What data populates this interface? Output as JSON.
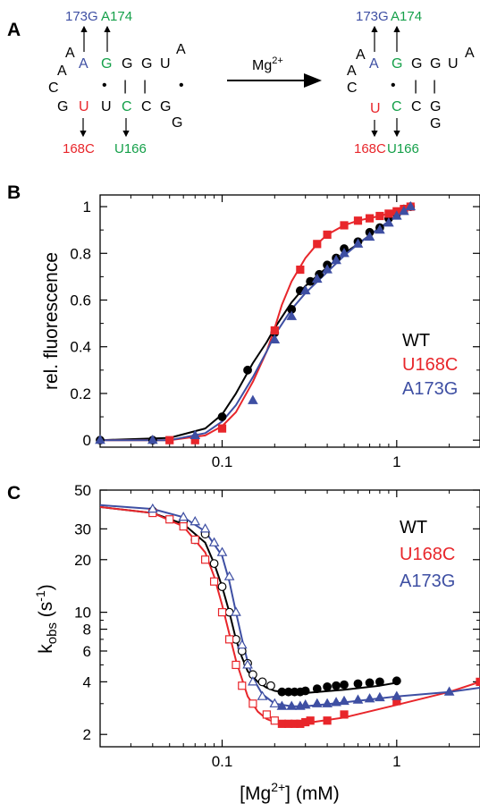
{
  "colors": {
    "wt": "#000000",
    "u168c": "#e8262b",
    "a173g": "#3e4fa3",
    "green": "#15a04a"
  },
  "panel_a": {
    "letter": "A",
    "arrow_label": "Mg",
    "arrow_label_sup": "2+",
    "left": {
      "top_left_label": "173G",
      "top_right_label": "A174",
      "bottom_left_label": "168C",
      "bottom_right_label": "U166",
      "nucleotides": [
        "A",
        "A",
        "C",
        "A",
        "G",
        "G",
        "G",
        "U",
        "A",
        "G",
        "U",
        "U",
        "C",
        "C",
        "G",
        "G"
      ],
      "dots": [
        "•",
        "•"
      ],
      "bars": [
        "|",
        "|"
      ]
    },
    "right": {
      "top_left_label": "173G",
      "top_right_label": "A174",
      "bottom_left_label": "168C",
      "bottom_right_label": "U166",
      "nucleotides": [
        "A",
        "A",
        "C",
        "A",
        "G",
        "G",
        "G",
        "U",
        "A",
        "U",
        "C",
        "C",
        "G",
        "G"
      ],
      "dots": [
        "•"
      ],
      "bars": [
        "|",
        "|"
      ]
    }
  },
  "chart_data": [
    {
      "panel": "B",
      "type": "scatter",
      "ylabel": "rel. fluorescence",
      "xlabel": "",
      "xscale": "log",
      "xlim": [
        0.02,
        3
      ],
      "ylim": [
        -0.03,
        1.05
      ],
      "xticks": [
        "0.1",
        "1"
      ],
      "yticks": [
        "0",
        "0.2",
        "0.4",
        "0.6",
        "0.8",
        "1"
      ],
      "legend_position": "right",
      "series": [
        {
          "name": "WT",
          "color": "#000000",
          "marker": "circle-filled",
          "x": [
            0.02,
            0.04,
            0.1,
            0.14,
            0.2,
            0.25,
            0.28,
            0.32,
            0.36,
            0.4,
            0.45,
            0.5,
            0.6,
            0.7,
            0.8,
            0.9,
            1.0,
            1.1,
            1.2
          ],
          "y": [
            0.0,
            0.0,
            0.1,
            0.3,
            0.46,
            0.56,
            0.64,
            0.68,
            0.71,
            0.75,
            0.78,
            0.82,
            0.85,
            0.89,
            0.91,
            0.95,
            0.97,
            0.99,
            1.0
          ]
        },
        {
          "name": "U168C",
          "color": "#e8262b",
          "marker": "square-filled",
          "x": [
            0.05,
            0.07,
            0.1,
            0.2,
            0.28,
            0.35,
            0.4,
            0.5,
            0.6,
            0.7,
            0.8,
            0.9,
            1.0,
            1.1,
            1.2
          ],
          "y": [
            0.0,
            0.0,
            0.05,
            0.47,
            0.73,
            0.84,
            0.88,
            0.92,
            0.94,
            0.95,
            0.96,
            0.97,
            0.98,
            0.99,
            1.0
          ]
        },
        {
          "name": "A173G",
          "color": "#3e4fa3",
          "marker": "triangle-filled",
          "x": [
            0.02,
            0.04,
            0.07,
            0.15,
            0.2,
            0.25,
            0.3,
            0.35,
            0.4,
            0.45,
            0.5,
            0.6,
            0.7,
            0.8,
            0.9,
            1.0,
            1.1,
            1.2
          ],
          "y": [
            0.0,
            0.0,
            0.02,
            0.17,
            0.43,
            0.53,
            0.64,
            0.69,
            0.73,
            0.77,
            0.8,
            0.84,
            0.87,
            0.9,
            0.93,
            0.96,
            0.98,
            1.0
          ]
        }
      ],
      "fits": [
        {
          "name": "WT",
          "color": "#000000",
          "x": [
            0.02,
            0.05,
            0.08,
            0.1,
            0.12,
            0.15,
            0.18,
            0.2,
            0.25,
            0.3,
            0.4,
            0.5,
            0.6,
            0.8,
            1.0,
            1.2
          ],
          "y": [
            0.0,
            0.01,
            0.05,
            0.11,
            0.2,
            0.33,
            0.42,
            0.48,
            0.59,
            0.66,
            0.74,
            0.8,
            0.84,
            0.91,
            0.96,
            1.0
          ]
        },
        {
          "name": "U168C",
          "color": "#e8262b",
          "x": [
            0.02,
            0.05,
            0.08,
            0.1,
            0.12,
            0.15,
            0.18,
            0.2,
            0.22,
            0.25,
            0.3,
            0.35,
            0.4,
            0.5,
            0.6,
            0.8,
            1.0,
            1.2
          ],
          "y": [
            0.0,
            0.0,
            0.02,
            0.06,
            0.12,
            0.25,
            0.38,
            0.48,
            0.58,
            0.68,
            0.78,
            0.84,
            0.88,
            0.92,
            0.94,
            0.96,
            0.98,
            1.0
          ]
        },
        {
          "name": "A173G",
          "color": "#3e4fa3",
          "x": [
            0.02,
            0.05,
            0.08,
            0.1,
            0.12,
            0.15,
            0.18,
            0.2,
            0.25,
            0.3,
            0.4,
            0.5,
            0.6,
            0.8,
            1.0,
            1.2
          ],
          "y": [
            0.0,
            0.0,
            0.03,
            0.08,
            0.15,
            0.27,
            0.38,
            0.45,
            0.56,
            0.63,
            0.72,
            0.79,
            0.84,
            0.91,
            0.96,
            1.0
          ]
        }
      ]
    },
    {
      "panel": "C",
      "type": "scatter",
      "ylabel_main": "k",
      "ylabel_sub": "obs",
      "ylabel_units": " (s",
      "ylabel_sup": "-1",
      "ylabel_close": ")",
      "xlabel_main": "[Mg",
      "xlabel_sup": "2+",
      "xlabel_rest": "] (mM)",
      "xscale": "log",
      "yscale": "log",
      "xlim": [
        0.02,
        3
      ],
      "ylim": [
        1.7,
        50
      ],
      "xticks": [
        "0.1",
        "1"
      ],
      "yticks": [
        "2",
        "4",
        "6",
        "8",
        "10",
        "20",
        "30",
        "50"
      ],
      "legend_position": "right",
      "series": [
        {
          "name": "WT",
          "color": "#000000",
          "marker": "circle",
          "x": [
            0.04,
            0.06,
            0.07,
            0.08,
            0.09,
            0.1,
            0.11,
            0.12,
            0.13,
            0.14,
            0.15,
            0.17,
            0.19,
            0.22,
            0.24,
            0.26,
            0.28,
            0.3,
            0.35,
            0.4,
            0.45,
            0.5,
            0.6,
            0.7,
            0.8,
            1.0
          ],
          "y": [
            38,
            33,
            26,
            28,
            19,
            14,
            10,
            7,
            6,
            5.1,
            4.4,
            4.0,
            3.8,
            3.5,
            3.5,
            3.5,
            3.5,
            3.55,
            3.65,
            3.75,
            3.8,
            3.85,
            3.9,
            3.95,
            4.0,
            4.05
          ],
          "filled_from_x": 0.22
        },
        {
          "name": "U168C",
          "color": "#e8262b",
          "marker": "square",
          "x": [
            0.04,
            0.05,
            0.06,
            0.07,
            0.08,
            0.09,
            0.1,
            0.11,
            0.12,
            0.13,
            0.15,
            0.18,
            0.2,
            0.22,
            0.24,
            0.26,
            0.28,
            0.3,
            0.32,
            0.4,
            0.5,
            1.0,
            3.0
          ],
          "y": [
            37,
            34,
            31,
            26,
            20,
            15,
            10,
            7,
            5,
            3.8,
            3.0,
            2.6,
            2.4,
            2.3,
            2.3,
            2.3,
            2.3,
            2.35,
            2.4,
            2.4,
            2.6,
            3.1,
            4.0
          ],
          "filled_from_x": 0.22
        },
        {
          "name": "A173G",
          "color": "#3e4fa3",
          "marker": "triangle",
          "x": [
            0.04,
            0.06,
            0.07,
            0.08,
            0.09,
            0.1,
            0.11,
            0.12,
            0.13,
            0.14,
            0.15,
            0.17,
            0.2,
            0.22,
            0.25,
            0.28,
            0.3,
            0.35,
            0.4,
            0.45,
            0.5,
            0.6,
            0.7,
            0.8,
            1.0,
            2.0
          ],
          "y": [
            39,
            35,
            33,
            30,
            25,
            22,
            16,
            10,
            6.5,
            5.0,
            4.0,
            3.3,
            3.0,
            2.9,
            2.9,
            2.9,
            2.95,
            3.0,
            3.0,
            3.05,
            3.1,
            3.15,
            3.2,
            3.25,
            3.3,
            3.5
          ],
          "filled_from_x": 0.22
        }
      ],
      "fits": [
        {
          "name": "WT",
          "color": "#000000",
          "x": [
            0.02,
            0.04,
            0.06,
            0.08,
            0.09,
            0.1,
            0.11,
            0.12,
            0.13,
            0.14,
            0.16,
            0.18,
            0.2,
            0.25,
            0.3,
            0.5,
            0.8,
            1.0
          ],
          "y": [
            40,
            37,
            32,
            25,
            19,
            14,
            10,
            7,
            5.5,
            4.6,
            4.0,
            3.7,
            3.55,
            3.45,
            3.45,
            3.6,
            3.8,
            3.95
          ]
        },
        {
          "name": "U168C",
          "color": "#e8262b",
          "x": [
            0.02,
            0.04,
            0.06,
            0.08,
            0.09,
            0.1,
            0.11,
            0.12,
            0.14,
            0.16,
            0.18,
            0.2,
            0.25,
            0.3,
            0.5,
            1.0,
            2.0,
            3.0
          ],
          "y": [
            40,
            37,
            31,
            22,
            16,
            11,
            7.5,
            5.3,
            3.3,
            2.7,
            2.45,
            2.35,
            2.3,
            2.32,
            2.5,
            2.95,
            3.5,
            4.0
          ]
        },
        {
          "name": "A173G",
          "color": "#3e4fa3",
          "x": [
            0.02,
            0.04,
            0.06,
            0.08,
            0.1,
            0.11,
            0.12,
            0.13,
            0.14,
            0.15,
            0.17,
            0.2,
            0.25,
            0.3,
            0.5,
            1.0,
            2.0,
            3.0
          ],
          "y": [
            41,
            39,
            35,
            29,
            21,
            15,
            10,
            7,
            5.2,
            4.2,
            3.4,
            3.0,
            2.9,
            2.9,
            3.05,
            3.3,
            3.5,
            3.7
          ]
        }
      ]
    }
  ],
  "panel_b_letter": "B",
  "panel_c_letter": "C"
}
